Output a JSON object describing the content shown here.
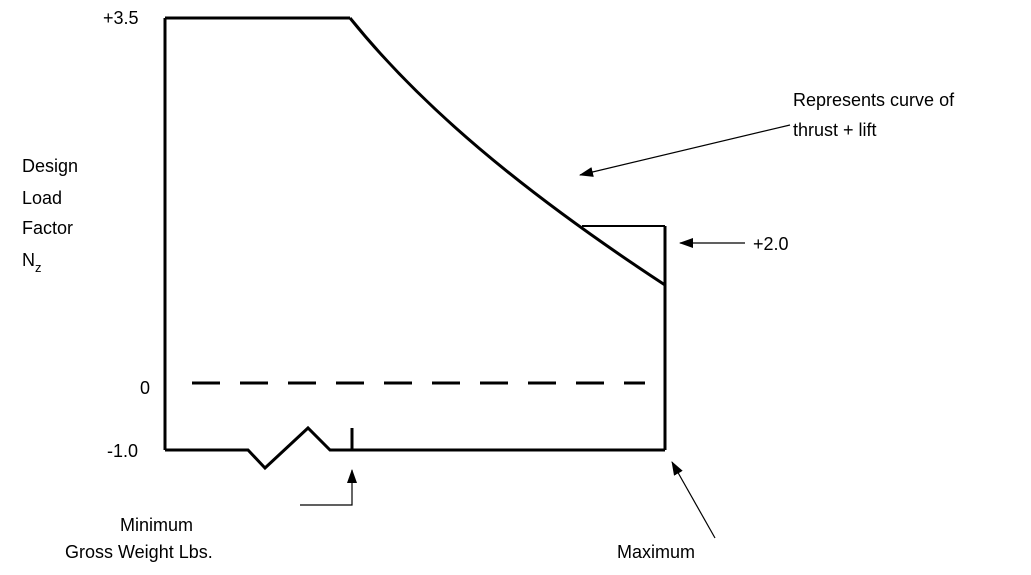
{
  "axis": {
    "top_label": "+3.5",
    "zero_label": "0",
    "bottom_label": "-1.0"
  },
  "y_label": {
    "lines": [
      "Design",
      "Load",
      "Factor"
    ],
    "symbol": "N",
    "subscript": "z"
  },
  "annotations": {
    "curve": [
      "Represents curve of",
      "thrust + lift"
    ],
    "level": "+2.0",
    "minimum": [
      "Minimum",
      "Gross Weight Lbs."
    ],
    "maximum": "Maximum"
  }
}
